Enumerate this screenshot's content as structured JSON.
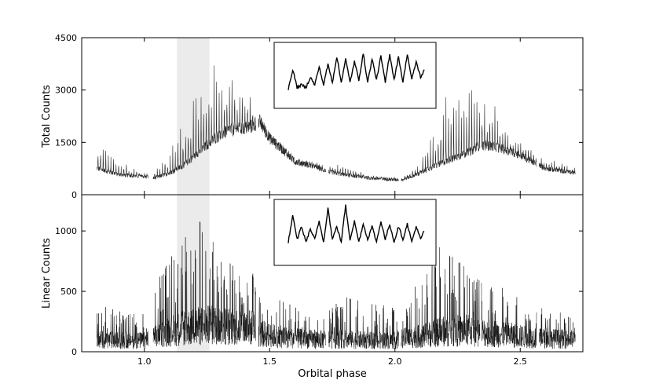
{
  "chart_data": [
    {
      "type": "line",
      "panel": "top",
      "xlabel": "",
      "ylabel": "Total Counts",
      "xlim": [
        0.75,
        2.75
      ],
      "ylim": [
        0,
        4500
      ],
      "yticks": [
        0,
        1500,
        3000,
        4500
      ],
      "ytick_labels": [
        "0",
        "1500",
        "3000",
        "4500"
      ],
      "shaded_band": [
        1.13,
        1.26
      ],
      "series": [
        {
          "x": [
            0.81,
            0.9,
            1.0,
            1.04,
            1.1,
            1.16,
            1.22,
            1.28,
            1.34,
            1.4,
            1.44,
            1.46,
            1.5,
            1.56,
            1.6,
            1.68,
            1.73,
            1.8,
            1.9,
            2.0,
            2.03,
            2.1,
            2.2,
            2.3,
            2.34,
            2.4,
            2.5,
            2.57,
            2.6,
            2.72
          ],
          "values": [
            800,
            600,
            550,
            500,
            650,
            900,
            1300,
            1700,
            1950,
            2000,
            2100,
            2200,
            1700,
            1300,
            1000,
            850,
            700,
            600,
            500,
            450,
            450,
            650,
            1000,
            1300,
            1500,
            1450,
            1200,
            900,
            800,
            650
          ],
          "spike_maxima": [
            1550,
            1000,
            650,
            700,
            1200,
            2400,
            3200,
            3800,
            3700,
            3000,
            2600,
            2400,
            1900,
            1400,
            1100,
            950,
            800,
            900,
            600,
            500,
            550,
            900,
            2800,
            3400,
            3000,
            2500,
            1500,
            1200,
            1000,
            800
          ]
        }
      ],
      "inset": {
        "type": "line",
        "values": [
          0.2,
          0.6,
          0.25,
          0.3,
          0.25,
          0.45,
          0.3,
          0.65,
          0.3,
          0.7,
          0.35,
          0.85,
          0.35,
          0.8,
          0.35,
          0.75,
          0.4,
          0.9,
          0.35,
          0.8,
          0.4,
          0.85,
          0.35,
          0.9,
          0.4,
          0.85,
          0.35,
          0.9,
          0.4,
          0.75,
          0.45,
          0.6
        ]
      }
    },
    {
      "type": "line",
      "panel": "bottom",
      "xlabel": "Orbital phase",
      "ylabel": "Linear Counts",
      "xlim": [
        0.75,
        2.75
      ],
      "ylim": [
        0,
        1300
      ],
      "xticks": [
        1.0,
        1.5,
        2.0,
        2.5
      ],
      "xtick_labels": [
        "1.0",
        "1.5",
        "2.0",
        "2.5"
      ],
      "yticks": [
        0,
        500,
        1000
      ],
      "ytick_labels": [
        "0",
        "500",
        "1000"
      ],
      "shaded_band": [
        1.13,
        1.26
      ],
      "series": [
        {
          "x": [
            0.81,
            0.9,
            1.0,
            1.04,
            1.1,
            1.16,
            1.22,
            1.28,
            1.34,
            1.4,
            1.44,
            1.46,
            1.5,
            1.56,
            1.6,
            1.68,
            1.73,
            1.8,
            1.9,
            2.0,
            2.03,
            2.1,
            2.2,
            2.3,
            2.34,
            2.4,
            2.5,
            2.57,
            2.6,
            2.72
          ],
          "values": [
            120,
            110,
            110,
            140,
            200,
            230,
            250,
            260,
            250,
            240,
            230,
            180,
            160,
            140,
            130,
            120,
            120,
            120,
            110,
            110,
            130,
            150,
            200,
            210,
            190,
            180,
            150,
            130,
            130,
            120
          ],
          "spike_maxima": [
            400,
            350,
            320,
            550,
            780,
            950,
            1150,
            900,
            800,
            700,
            650,
            500,
            560,
            420,
            380,
            300,
            320,
            500,
            400,
            380,
            450,
            600,
            1000,
            620,
            600,
            560,
            450,
            380,
            350,
            300
          ]
        }
      ],
      "inset": {
        "type": "line",
        "values": [
          0.3,
          0.8,
          0.35,
          0.6,
          0.3,
          0.55,
          0.35,
          0.7,
          0.3,
          0.95,
          0.35,
          0.6,
          0.3,
          1.0,
          0.35,
          0.7,
          0.3,
          0.65,
          0.35,
          0.6,
          0.3,
          0.7,
          0.35,
          0.65,
          0.3,
          0.6,
          0.35,
          0.65,
          0.3,
          0.6,
          0.35,
          0.55
        ]
      }
    }
  ]
}
